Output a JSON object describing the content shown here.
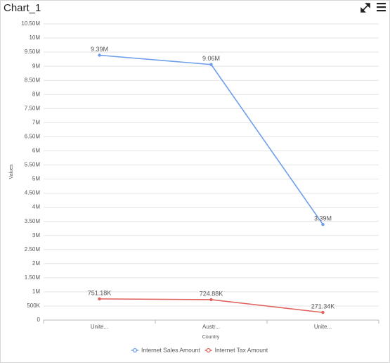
{
  "chart_data": {
    "type": "line",
    "title": "Chart_1",
    "x_label": "Country",
    "y_label": "Values",
    "categories": [
      "Unite...",
      "Austr...",
      "Unite..."
    ],
    "series": [
      {
        "name": "Internet Sales Amount",
        "color": "#6d9eeb",
        "values": [
          9390000,
          9060000,
          3390000
        ],
        "value_labels": [
          "9.39M",
          "9.06M",
          "3.39M"
        ]
      },
      {
        "name": "Internet Tax Amount",
        "color": "#df625c",
        "values": [
          751180,
          724880,
          271340
        ],
        "value_labels": [
          "751.18K",
          "724.88K",
          "271.34K"
        ]
      }
    ],
    "ylim": [
      0,
      10500000
    ],
    "yticks": [
      0,
      {
        "value": 500000,
        "label": "500K"
      },
      {
        "value": 1000000,
        "label": "1M"
      },
      {
        "value": 1500000,
        "label": "1.50M"
      },
      {
        "value": 2000000,
        "label": "2M"
      },
      {
        "value": 2500000,
        "label": "2.50M"
      },
      {
        "value": 3000000,
        "label": "3M"
      },
      {
        "value": 3500000,
        "label": "3.50M"
      },
      {
        "value": 4000000,
        "label": "4M"
      },
      {
        "value": 4500000,
        "label": "4.50M"
      },
      {
        "value": 5000000,
        "label": "5M"
      },
      {
        "value": 5500000,
        "label": "5.50M"
      },
      {
        "value": 6000000,
        "label": "6M"
      },
      {
        "value": 6500000,
        "label": "6.50M"
      },
      {
        "value": 7000000,
        "label": "7M"
      },
      {
        "value": 7500000,
        "label": "7.50M"
      },
      {
        "value": 8000000,
        "label": "8M"
      },
      {
        "value": 8500000,
        "label": "8.50M"
      },
      {
        "value": 9000000,
        "label": "9M"
      },
      {
        "value": 9500000,
        "label": "9.50M"
      },
      {
        "value": 10000000,
        "label": "10M"
      },
      {
        "value": 10500000,
        "label": "10.50M"
      }
    ],
    "grid": true,
    "legend": "bottom"
  }
}
